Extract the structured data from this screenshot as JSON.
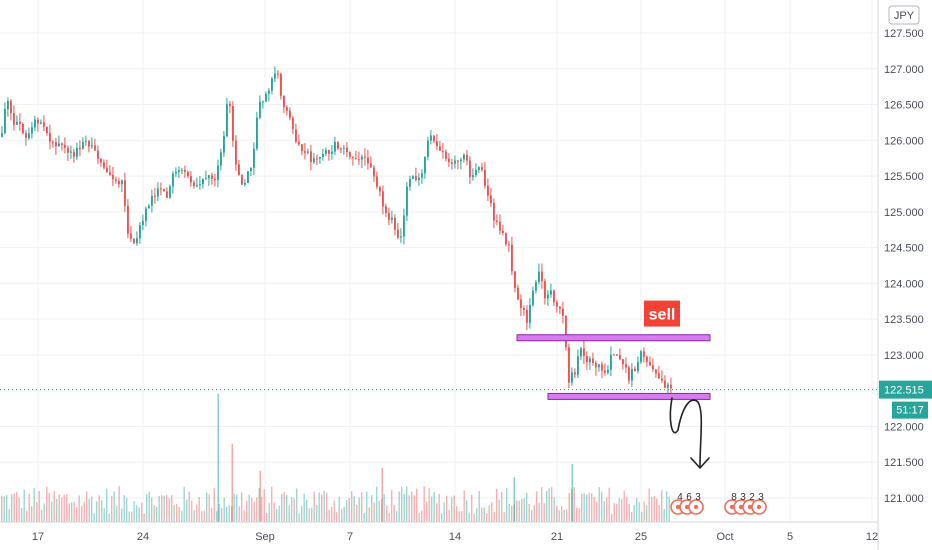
{
  "chart_data": {
    "type": "candlestick",
    "currency": "JPY",
    "y_ticks": [
      121.0,
      121.5,
      122.0,
      122.5,
      123.0,
      123.5,
      124.0,
      124.5,
      125.0,
      125.5,
      126.0,
      126.5,
      127.0,
      127.5
    ],
    "y_tick_labels": [
      "121.000",
      "121.500",
      "122.000",
      "122.500",
      "123.000",
      "123.500",
      "124.000",
      "124.500",
      "125.000",
      "125.500",
      "126.000",
      "126.500",
      "127.000",
      "127.500"
    ],
    "ylim": [
      120.7,
      127.85
    ],
    "x_labels": [
      "17",
      "24",
      "Sep",
      "7",
      "14",
      "21",
      "25",
      "Oct",
      "5",
      "12"
    ],
    "current_price": "122.515",
    "current_price_value": 122.515,
    "countdown": "51:17",
    "colors": {
      "up": "#26a69a",
      "down": "#ef5350",
      "zone": "#d77bf0",
      "zone_border": "#8e24aa",
      "sell": "#f44336"
    },
    "close_points": [
      [
        0,
        126.05
      ],
      [
        6,
        126.6
      ],
      [
        12,
        126.25
      ],
      [
        18,
        126.2
      ],
      [
        26,
        126.05
      ],
      [
        34,
        126.3
      ],
      [
        42,
        126.2
      ],
      [
        50,
        125.95
      ],
      [
        58,
        125.9
      ],
      [
        66,
        125.85
      ],
      [
        74,
        125.8
      ],
      [
        82,
        125.95
      ],
      [
        90,
        125.9
      ],
      [
        98,
        125.75
      ],
      [
        106,
        125.55
      ],
      [
        114,
        125.4
      ],
      [
        122,
        125.4
      ],
      [
        128,
        124.55
      ],
      [
        134,
        124.6
      ],
      [
        142,
        124.9
      ],
      [
        150,
        125.15
      ],
      [
        158,
        125.3
      ],
      [
        166,
        125.2
      ],
      [
        174,
        125.6
      ],
      [
        182,
        125.65
      ],
      [
        190,
        125.4
      ],
      [
        198,
        125.35
      ],
      [
        206,
        125.55
      ],
      [
        214,
        125.5
      ],
      [
        222,
        126.0
      ],
      [
        228,
        126.7
      ],
      [
        234,
        125.7
      ],
      [
        240,
        125.35
      ],
      [
        246,
        125.5
      ],
      [
        252,
        125.75
      ],
      [
        258,
        126.6
      ],
      [
        264,
        126.55
      ],
      [
        270,
        126.85
      ],
      [
        276,
        126.95
      ],
      [
        282,
        126.5
      ],
      [
        288,
        126.3
      ],
      [
        296,
        125.95
      ],
      [
        304,
        125.85
      ],
      [
        312,
        125.7
      ],
      [
        320,
        125.75
      ],
      [
        328,
        125.85
      ],
      [
        336,
        125.95
      ],
      [
        344,
        125.9
      ],
      [
        352,
        125.75
      ],
      [
        360,
        125.8
      ],
      [
        368,
        125.65
      ],
      [
        376,
        125.4
      ],
      [
        384,
        124.95
      ],
      [
        392,
        124.85
      ],
      [
        400,
        124.6
      ],
      [
        406,
        125.4
      ],
      [
        412,
        125.5
      ],
      [
        420,
        125.45
      ],
      [
        428,
        126.05
      ],
      [
        434,
        125.95
      ],
      [
        440,
        125.9
      ],
      [
        448,
        125.65
      ],
      [
        456,
        125.7
      ],
      [
        464,
        125.8
      ],
      [
        470,
        125.45
      ],
      [
        478,
        125.65
      ],
      [
        486,
        125.35
      ],
      [
        492,
        124.95
      ],
      [
        500,
        124.75
      ],
      [
        508,
        124.5
      ],
      [
        514,
        123.95
      ],
      [
        520,
        123.7
      ],
      [
        526,
        123.5
      ],
      [
        532,
        123.95
      ],
      [
        538,
        124.15
      ],
      [
        544,
        123.8
      ],
      [
        550,
        123.9
      ],
      [
        556,
        123.65
      ],
      [
        562,
        123.55
      ],
      [
        568,
        122.65
      ],
      [
        574,
        122.75
      ],
      [
        580,
        123.1
      ],
      [
        586,
        122.95
      ],
      [
        592,
        122.85
      ],
      [
        598,
        122.9
      ],
      [
        604,
        122.75
      ],
      [
        610,
        122.95
      ],
      [
        616,
        123.05
      ],
      [
        622,
        122.85
      ],
      [
        628,
        122.7
      ],
      [
        634,
        122.8
      ],
      [
        640,
        123.0
      ],
      [
        646,
        122.95
      ],
      [
        652,
        122.75
      ],
      [
        658,
        122.7
      ],
      [
        664,
        122.55
      ],
      [
        670,
        122.515
      ]
    ],
    "volume_spikes": [
      [
        218,
        0.95
      ],
      [
        232,
        0.58
      ],
      [
        260,
        0.38
      ],
      [
        382,
        0.4
      ],
      [
        514,
        0.33
      ],
      [
        572,
        0.43
      ]
    ],
    "zones": [
      {
        "name": "upper",
        "x0": 517,
        "x1": 710,
        "y": 123.24
      },
      {
        "name": "lower",
        "x0": 548,
        "x1": 710,
        "y": 122.42
      }
    ],
    "annotation": {
      "text": "sell",
      "x": 662,
      "y": 123.55
    },
    "events": [
      {
        "x": 678,
        "labels": [
          "4",
          "6",
          "3"
        ]
      },
      {
        "x": 732,
        "labels": [
          "8",
          "3",
          "2",
          "3"
        ]
      }
    ]
  }
}
